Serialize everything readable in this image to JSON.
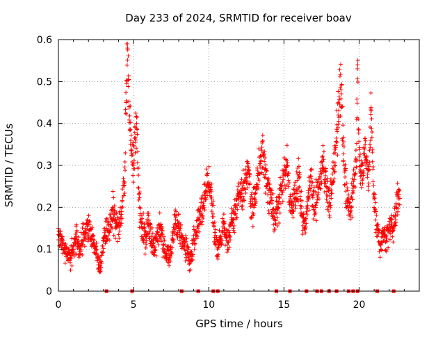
{
  "chart_data": {
    "type": "scatter",
    "title": "Day 233 of 2024, SRMTID for receiver boav",
    "xlabel": "GPS time / hours",
    "ylabel": "SRMTID / TECUs",
    "xlim": [
      0,
      24
    ],
    "ylim": [
      0,
      0.6
    ],
    "xticks": [
      0,
      5,
      10,
      15,
      20
    ],
    "xtick_labels": [
      "0",
      "5",
      "10",
      "15",
      "20"
    ],
    "yticks": [
      0,
      0.1,
      0.2,
      0.3,
      0.4,
      0.5,
      0.6
    ],
    "ytick_labels": [
      "0",
      "0.1",
      "0.2",
      "0.3",
      "0.4",
      "0.5",
      "0.6"
    ],
    "grid": true,
    "marker": "plus",
    "color": "#ff0000",
    "series": [
      {
        "name": "SRMTID",
        "x_range": [
          0,
          22.7
        ],
        "points": [
          [
            0.0,
            0.15
          ],
          [
            0.2,
            0.12
          ],
          [
            0.4,
            0.1
          ],
          [
            0.6,
            0.09
          ],
          [
            0.8,
            0.08
          ],
          [
            1.0,
            0.11
          ],
          [
            1.2,
            0.13
          ],
          [
            1.4,
            0.1
          ],
          [
            1.6,
            0.12
          ],
          [
            1.8,
            0.14
          ],
          [
            2.0,
            0.16
          ],
          [
            2.2,
            0.13
          ],
          [
            2.4,
            0.11
          ],
          [
            2.6,
            0.08
          ],
          [
            2.8,
            0.05
          ],
          [
            3.0,
            0.12
          ],
          [
            3.2,
            0.15
          ],
          [
            3.4,
            0.14
          ],
          [
            3.6,
            0.2
          ],
          [
            3.8,
            0.17
          ],
          [
            4.0,
            0.16
          ],
          [
            4.2,
            0.19
          ],
          [
            4.4,
            0.26
          ],
          [
            4.5,
            0.45
          ],
          [
            4.6,
            0.58
          ],
          [
            4.7,
            0.44
          ],
          [
            4.8,
            0.35
          ],
          [
            5.0,
            0.3
          ],
          [
            5.2,
            0.4
          ],
          [
            5.4,
            0.2
          ],
          [
            5.6,
            0.15
          ],
          [
            5.8,
            0.13
          ],
          [
            6.0,
            0.16
          ],
          [
            6.2,
            0.12
          ],
          [
            6.4,
            0.1
          ],
          [
            6.6,
            0.14
          ],
          [
            6.8,
            0.15
          ],
          [
            7.0,
            0.11
          ],
          [
            7.2,
            0.09
          ],
          [
            7.4,
            0.08
          ],
          [
            7.6,
            0.12
          ],
          [
            7.8,
            0.17
          ],
          [
            8.0,
            0.15
          ],
          [
            8.2,
            0.13
          ],
          [
            8.4,
            0.11
          ],
          [
            8.6,
            0.09
          ],
          [
            8.8,
            0.07
          ],
          [
            9.0,
            0.12
          ],
          [
            9.2,
            0.14
          ],
          [
            9.4,
            0.17
          ],
          [
            9.6,
            0.2
          ],
          [
            9.8,
            0.24
          ],
          [
            10.0,
            0.26
          ],
          [
            10.2,
            0.22
          ],
          [
            10.4,
            0.14
          ],
          [
            10.6,
            0.1
          ],
          [
            10.8,
            0.13
          ],
          [
            11.0,
            0.16
          ],
          [
            11.2,
            0.12
          ],
          [
            11.4,
            0.14
          ],
          [
            11.6,
            0.17
          ],
          [
            11.8,
            0.2
          ],
          [
            12.0,
            0.22
          ],
          [
            12.2,
            0.24
          ],
          [
            12.4,
            0.26
          ],
          [
            12.6,
            0.28
          ],
          [
            12.8,
            0.22
          ],
          [
            13.0,
            0.2
          ],
          [
            13.2,
            0.25
          ],
          [
            13.4,
            0.3
          ],
          [
            13.6,
            0.33
          ],
          [
            13.8,
            0.27
          ],
          [
            14.0,
            0.24
          ],
          [
            14.2,
            0.21
          ],
          [
            14.4,
            0.17
          ],
          [
            14.6,
            0.2
          ],
          [
            14.8,
            0.24
          ],
          [
            15.0,
            0.28
          ],
          [
            15.2,
            0.3
          ],
          [
            15.4,
            0.22
          ],
          [
            15.6,
            0.19
          ],
          [
            15.8,
            0.24
          ],
          [
            16.0,
            0.27
          ],
          [
            16.2,
            0.18
          ],
          [
            16.4,
            0.15
          ],
          [
            16.6,
            0.22
          ],
          [
            16.8,
            0.26
          ],
          [
            17.0,
            0.2
          ],
          [
            17.2,
            0.23
          ],
          [
            17.4,
            0.27
          ],
          [
            17.6,
            0.31
          ],
          [
            17.8,
            0.25
          ],
          [
            18.0,
            0.21
          ],
          [
            18.2,
            0.26
          ],
          [
            18.4,
            0.33
          ],
          [
            18.6,
            0.42
          ],
          [
            18.8,
            0.48
          ],
          [
            19.0,
            0.3
          ],
          [
            19.2,
            0.22
          ],
          [
            19.4,
            0.19
          ],
          [
            19.6,
            0.24
          ],
          [
            19.8,
            0.31
          ],
          [
            19.9,
            0.54
          ],
          [
            20.0,
            0.32
          ],
          [
            20.2,
            0.28
          ],
          [
            20.4,
            0.35
          ],
          [
            20.6,
            0.25
          ],
          [
            20.8,
            0.43
          ],
          [
            21.0,
            0.22
          ],
          [
            21.2,
            0.16
          ],
          [
            21.4,
            0.11
          ],
          [
            21.6,
            0.14
          ],
          [
            21.8,
            0.12
          ],
          [
            22.0,
            0.16
          ],
          [
            22.2,
            0.15
          ],
          [
            22.4,
            0.18
          ],
          [
            22.6,
            0.22
          ]
        ]
      }
    ],
    "zero_value_x": [
      3.2,
      4.9,
      8.2,
      9.3,
      10.3,
      10.6,
      14.5,
      15.4,
      16.5,
      17.2,
      17.5,
      18.0,
      18.5,
      19.3,
      19.6,
      19.9,
      21.2,
      22.3
    ]
  }
}
